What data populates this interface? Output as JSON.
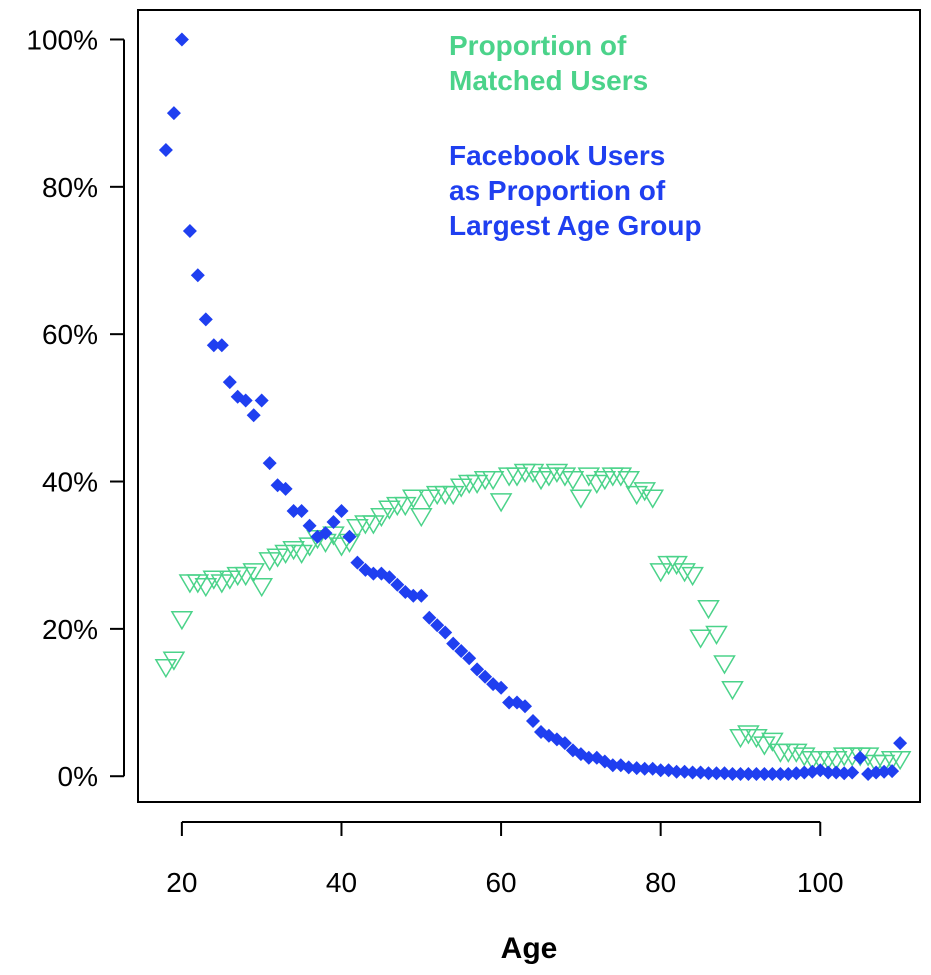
{
  "chart_data": {
    "type": "scatter",
    "xlabel": "Age",
    "ylabel": "",
    "xlim": [
      14.5,
      112.5
    ],
    "ylim": [
      -3.5,
      104
    ],
    "x_ticks": [
      20,
      40,
      60,
      80,
      100
    ],
    "x_tick_labels": [
      "20",
      "40",
      "60",
      "80",
      "100"
    ],
    "y_ticks": [
      0,
      20,
      40,
      60,
      80,
      100
    ],
    "y_tick_labels": [
      "0%",
      "20%",
      "40%",
      "60%",
      "80%",
      "100%"
    ],
    "grid": false,
    "legend": {
      "placement": "top-right",
      "entries": [
        {
          "lines": [
            "Proportion of",
            "Matched Users"
          ],
          "color": "#4bd38a"
        },
        {
          "lines": [
            "Facebook Users",
            "as Proportion of",
            "Largest Age Group"
          ],
          "color": "#1f3ff0"
        }
      ]
    },
    "series": [
      {
        "name": "Proportion of Matched Users",
        "marker": "triangle-down-open",
        "color": "#4bd38a",
        "x": [
          18,
          19,
          20,
          21,
          22,
          23,
          24,
          25,
          26,
          27,
          28,
          29,
          30,
          31,
          32,
          33,
          34,
          35,
          36,
          37,
          38,
          39,
          40,
          41,
          42,
          43,
          44,
          45,
          46,
          47,
          48,
          49,
          50,
          51,
          52,
          53,
          54,
          55,
          56,
          57,
          58,
          59,
          60,
          61,
          62,
          63,
          64,
          65,
          66,
          67,
          68,
          69,
          70,
          71,
          72,
          73,
          74,
          75,
          76,
          77,
          78,
          79,
          80,
          81,
          82,
          83,
          84,
          85,
          86,
          87,
          88,
          89,
          90,
          91,
          92,
          93,
          94,
          95,
          96,
          97,
          98,
          99,
          100,
          101,
          102,
          103,
          104,
          105,
          106,
          107,
          108,
          109,
          110
        ],
        "y": [
          15,
          16,
          21.5,
          26.5,
          26.5,
          26,
          27,
          26.5,
          27,
          27.5,
          27.5,
          28,
          26,
          29.5,
          30,
          30.5,
          31,
          30.5,
          31.5,
          32.5,
          32,
          33,
          31.5,
          32,
          34,
          34.5,
          34.5,
          35.5,
          36.5,
          37,
          37,
          38,
          35.5,
          38,
          38.5,
          38.5,
          38.5,
          39.5,
          40,
          40,
          40.5,
          40.5,
          37.5,
          41,
          41,
          41.5,
          41.5,
          40.5,
          41,
          41.5,
          41,
          40.5,
          38,
          41,
          40,
          40.5,
          41,
          41,
          40.5,
          38.5,
          39,
          38,
          28,
          29,
          29,
          28,
          27.5,
          19,
          23,
          19.5,
          15.5,
          12,
          5.5,
          6,
          5.5,
          4.5,
          5,
          3.5,
          3.5,
          3.5,
          3,
          2.5,
          2.5,
          2.5,
          2.5,
          3,
          3,
          3,
          3,
          2,
          2,
          2.5,
          2.5
        ]
      },
      {
        "name": "Facebook Users as Proportion of Largest Age Group",
        "marker": "diamond-filled",
        "color": "#1f3ff0",
        "x": [
          18,
          19,
          20,
          21,
          22,
          23,
          24,
          25,
          26,
          27,
          28,
          29,
          30,
          31,
          32,
          33,
          34,
          35,
          36,
          37,
          38,
          39,
          40,
          41,
          42,
          43,
          44,
          45,
          46,
          47,
          48,
          49,
          50,
          51,
          52,
          53,
          54,
          55,
          56,
          57,
          58,
          59,
          60,
          61,
          62,
          63,
          64,
          65,
          66,
          67,
          68,
          69,
          70,
          71,
          72,
          73,
          74,
          75,
          76,
          77,
          78,
          79,
          80,
          81,
          82,
          83,
          84,
          85,
          86,
          87,
          88,
          89,
          90,
          91,
          92,
          93,
          94,
          95,
          96,
          97,
          98,
          99,
          100,
          101,
          102,
          103,
          104,
          105,
          106,
          107,
          108,
          109,
          110
        ],
        "y": [
          85,
          90,
          100,
          74,
          68,
          62,
          58.5,
          58.5,
          53.5,
          51.5,
          51,
          49,
          51,
          42.5,
          39.5,
          39,
          36,
          36,
          34,
          32.5,
          33,
          34.5,
          36,
          32.5,
          29,
          28,
          27.5,
          27.5,
          27,
          26,
          25,
          24.5,
          24.5,
          21.5,
          20.5,
          19.5,
          18,
          17,
          16,
          14.5,
          13.5,
          12.5,
          12,
          10,
          10,
          9.5,
          7.5,
          6,
          5.5,
          5,
          4.5,
          3.5,
          3,
          2.5,
          2.5,
          2,
          1.5,
          1.5,
          1.2,
          1.1,
          1,
          1,
          0.8,
          0.8,
          0.6,
          0.6,
          0.5,
          0.5,
          0.4,
          0.4,
          0.4,
          0.3,
          0.3,
          0.3,
          0.3,
          0.3,
          0.3,
          0.3,
          0.3,
          0.4,
          0.5,
          0.6,
          0.8,
          0.5,
          0.5,
          0.4,
          0.5,
          2.5,
          0.3,
          0.5,
          0.6,
          0.7,
          4.5
        ]
      }
    ]
  }
}
